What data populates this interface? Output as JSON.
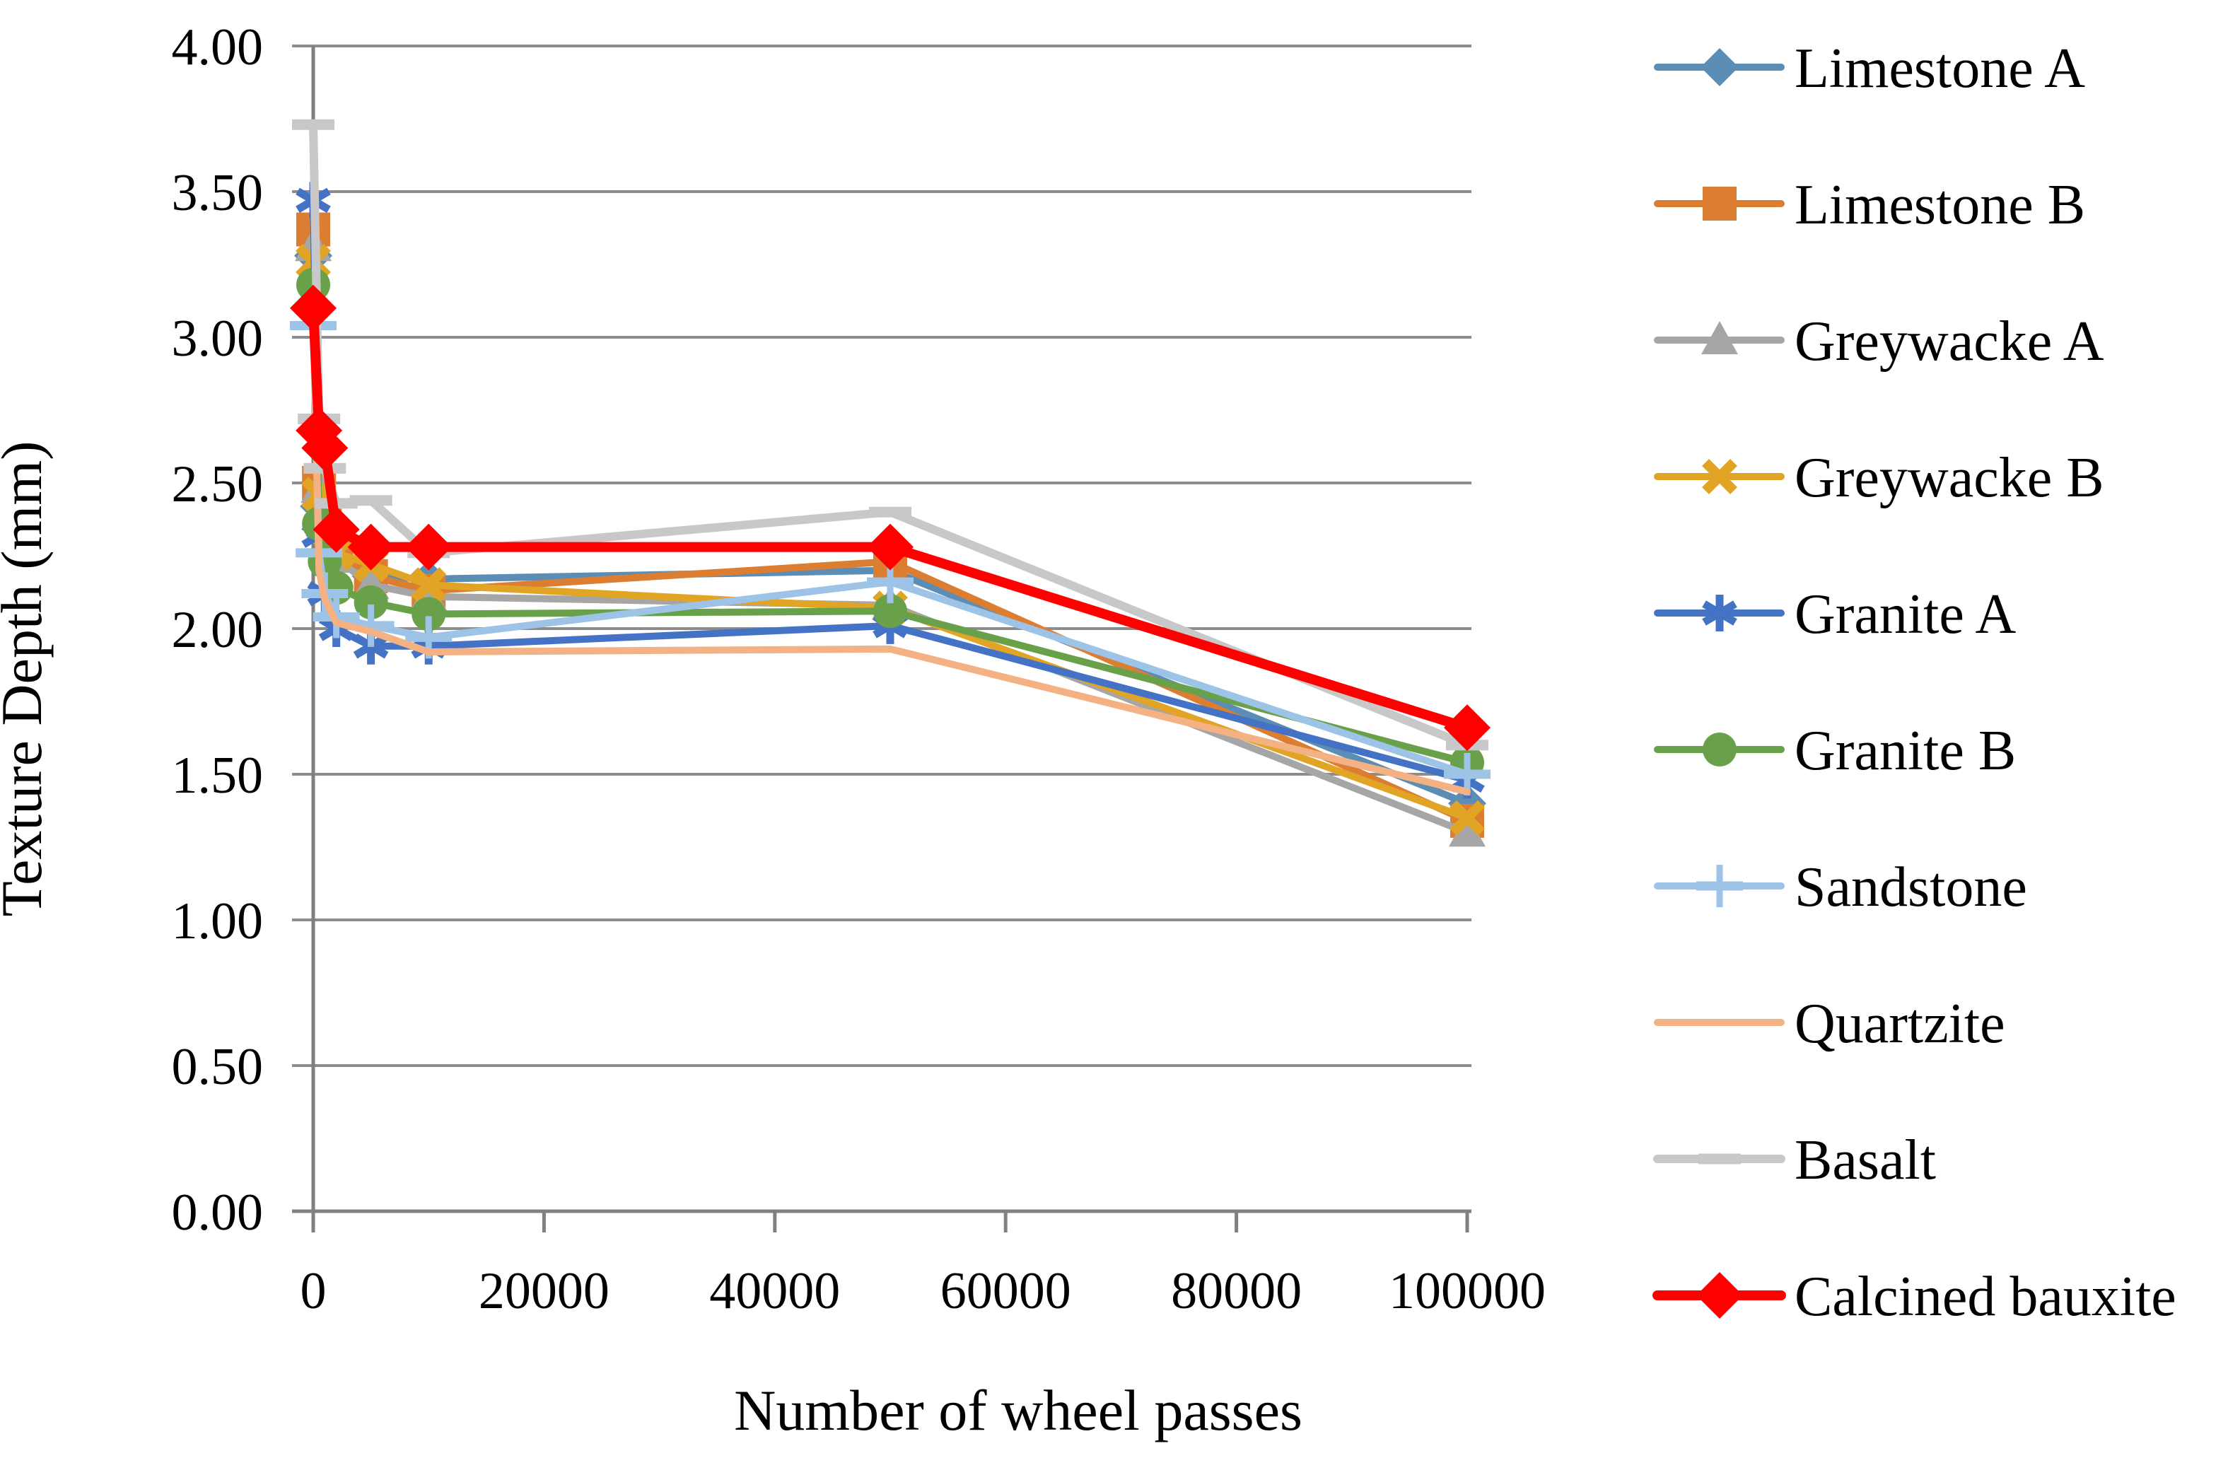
{
  "figure": {
    "description": "Line chart of texture depth versus number of wheel passes for ten aggregate types"
  },
  "chart_data": {
    "type": "line",
    "title": "",
    "xlabel": "Number of wheel passes",
    "ylabel": "Texture Depth (mm)",
    "xlim": [
      0,
      100000
    ],
    "ylim": [
      0,
      4.0
    ],
    "grid": true,
    "legend_position": "right",
    "axis_color": "#808080",
    "gridline_color": "#8C8C8C",
    "x": [
      0,
      500,
      1000,
      2000,
      5000,
      10000,
      50000,
      100000
    ],
    "x_tick_labels": [
      "0",
      "20000",
      "40000",
      "60000",
      "80000",
      "100000"
    ],
    "y_tick_labels": [
      "4.00",
      "3.50",
      "3.00",
      "2.50",
      "2.00",
      "1.50",
      "1.00",
      "0.50",
      "0.00"
    ],
    "series": [
      {
        "name": "Limestone A",
        "color": "#5B8DB5",
        "marker": "diamond",
        "emphasis": false,
        "values": [
          3.28,
          2.42,
          2.32,
          2.24,
          2.18,
          2.17,
          2.2,
          1.4
        ]
      },
      {
        "name": "Limestone B",
        "color": "#DC7E32",
        "marker": "square",
        "emphasis": false,
        "values": [
          3.37,
          2.5,
          2.38,
          2.27,
          2.18,
          2.13,
          2.23,
          1.34
        ]
      },
      {
        "name": "Greywacke A",
        "color": "#A6A6A6",
        "marker": "triangle",
        "emphasis": false,
        "values": [
          3.31,
          2.48,
          2.36,
          2.24,
          2.15,
          2.11,
          2.08,
          1.3
        ]
      },
      {
        "name": "Greywacke B",
        "color": "#E1A425",
        "marker": "x",
        "emphasis": false,
        "values": [
          3.26,
          2.46,
          2.35,
          2.26,
          2.22,
          2.15,
          2.07,
          1.35
        ]
      },
      {
        "name": "Granite A",
        "color": "#4472C4",
        "marker": "asterisk",
        "emphasis": false,
        "values": [
          3.47,
          2.32,
          2.12,
          2.0,
          1.94,
          1.94,
          2.01,
          1.48
        ]
      },
      {
        "name": "Granite B",
        "color": "#69A14A",
        "marker": "circle",
        "emphasis": false,
        "values": [
          3.18,
          2.36,
          2.23,
          2.14,
          2.09,
          2.05,
          2.06,
          1.54
        ]
      },
      {
        "name": "Sandstone",
        "color": "#9DC3E6",
        "marker": "plus",
        "emphasis": false,
        "values": [
          3.04,
          2.26,
          2.12,
          2.04,
          2.01,
          1.97,
          2.16,
          1.5
        ]
      },
      {
        "name": "Quartzite",
        "color": "#F4B183",
        "marker": "none",
        "emphasis": false,
        "values": [
          3.1,
          2.2,
          2.1,
          2.02,
          1.99,
          1.92,
          1.93,
          1.44
        ]
      },
      {
        "name": "Basalt",
        "color": "#C8C8C8",
        "marker": "dash",
        "emphasis": false,
        "values": [
          3.73,
          2.72,
          2.55,
          2.43,
          2.44,
          2.26,
          2.4,
          1.6
        ]
      },
      {
        "name": "Calcined bauxite",
        "color": "#FF0000",
        "marker": "diamond",
        "emphasis": true,
        "values": [
          3.1,
          2.68,
          2.62,
          2.34,
          2.28,
          2.28,
          2.28,
          1.66
        ]
      }
    ]
  }
}
